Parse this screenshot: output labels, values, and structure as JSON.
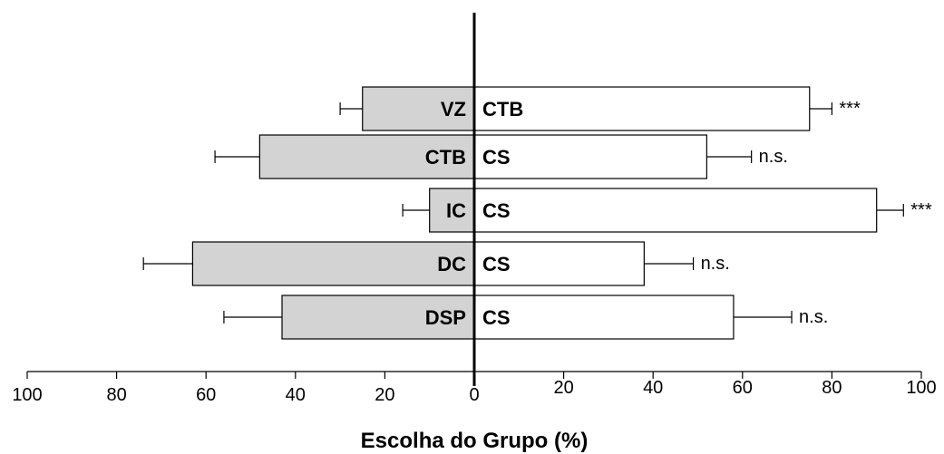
{
  "chart_data": {
    "type": "bar",
    "orientation": "horizontal-diverging",
    "xlabel": "Escolha do Grupo (%)",
    "xlim": [
      -100,
      100
    ],
    "tick_values": [
      -100,
      -80,
      -60,
      -40,
      -20,
      0,
      20,
      40,
      60,
      80,
      100
    ],
    "tick_labels": [
      "100",
      "80",
      "60",
      "40",
      "20",
      "0",
      "20",
      "40",
      "60",
      "80",
      "100"
    ],
    "colors": {
      "left_bar": "#d3d3d3",
      "right_bar": "#ffffff",
      "stroke": "#000000"
    },
    "rows": [
      {
        "left_label": "VZ",
        "left_value": 25,
        "left_error": 5,
        "right_label": "CTB",
        "right_value": 75,
        "right_error": 5,
        "significance": "***"
      },
      {
        "left_label": "CTB",
        "left_value": 48,
        "left_error": 10,
        "right_label": "CS",
        "right_value": 52,
        "right_error": 10,
        "significance": "n.s."
      },
      {
        "left_label": "IC",
        "left_value": 10,
        "left_error": 6,
        "right_label": "CS",
        "right_value": 90,
        "right_error": 6,
        "significance": "***"
      },
      {
        "left_label": "DC",
        "left_value": 63,
        "left_error": 11,
        "right_label": "CS",
        "right_value": 38,
        "right_error": 11,
        "significance": "n.s."
      },
      {
        "left_label": "DSP",
        "left_value": 43,
        "left_error": 13,
        "right_label": "CS",
        "right_value": 58,
        "right_error": 13,
        "significance": "n.s."
      }
    ]
  }
}
